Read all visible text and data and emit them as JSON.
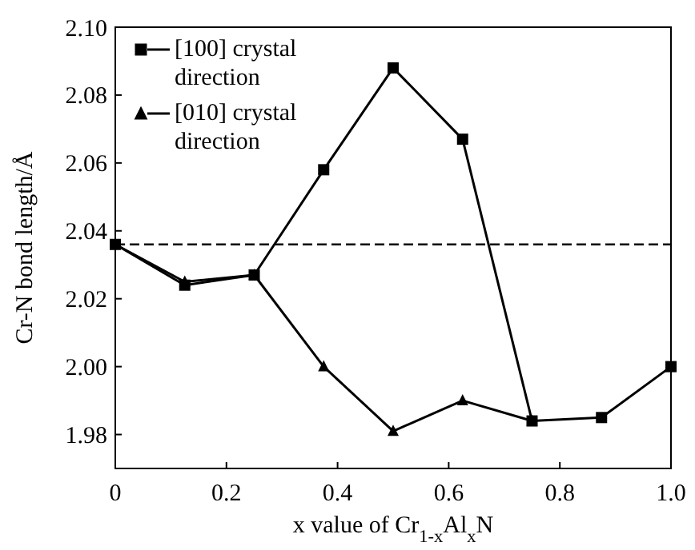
{
  "chart_data": {
    "type": "line",
    "xlabel": "x value of Cr$_{1-x}$Al$_{x}$N",
    "ylabel": "Cr-N bond length/Å",
    "xlim": [
      0,
      1
    ],
    "xticks": [
      0,
      0.2,
      0.4,
      0.6,
      0.8,
      {
        "value": 1,
        "label": "1.0"
      }
    ],
    "ylim": [
      1.97,
      2.1
    ],
    "yticks": [
      1.98,
      {
        "value": 2,
        "label": "2.00"
      },
      2.02,
      2.04,
      2.06,
      2.08,
      {
        "value": 2.1,
        "label": "2.10"
      }
    ],
    "legend": "top left",
    "line_style": "solid",
    "grid": false,
    "ref_lines": [
      {
        "axis": "y",
        "value": 2.036,
        "line_style": "dashed",
        "color": "#000000"
      }
    ],
    "series": [
      {
        "name": "[100] crystal direction",
        "color": "#000000",
        "marker": "square",
        "x": [
          0,
          0.125,
          0.25,
          0.375,
          0.5,
          0.625,
          0.75,
          0.875,
          1.0
        ],
        "values": [
          2.036,
          2.024,
          2.027,
          2.058,
          2.088,
          2.067,
          1.984,
          1.985,
          2.0
        ]
      },
      {
        "name": "[010] crystal direction",
        "color": "#000000",
        "marker": "triangle",
        "x": [
          0,
          0.125,
          0.25,
          0.375,
          0.5,
          0.625,
          0.75
        ],
        "values": [
          2.036,
          2.025,
          2.027,
          2.0,
          1.981,
          1.99,
          1.984
        ]
      }
    ]
  }
}
